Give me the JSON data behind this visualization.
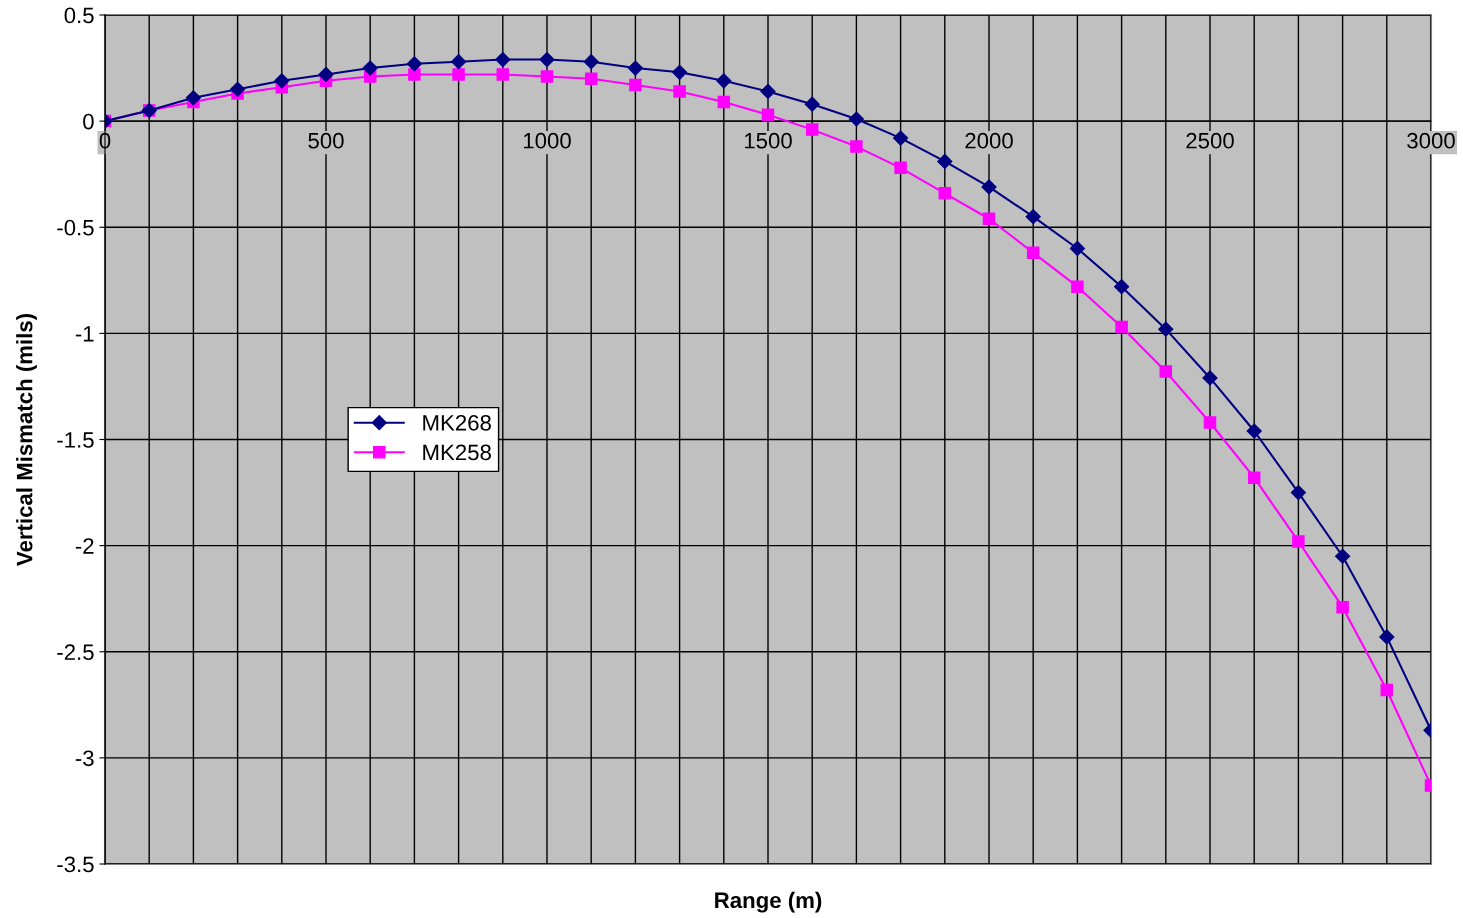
{
  "chart_data": {
    "type": "line",
    "xlabel": "Range (m)",
    "ylabel": "Vertical Mismatch (mils)",
    "x": [
      0,
      100,
      200,
      300,
      400,
      500,
      600,
      700,
      800,
      900,
      1000,
      1100,
      1200,
      1300,
      1400,
      1500,
      1600,
      1700,
      1800,
      1900,
      2000,
      2100,
      2200,
      2300,
      2400,
      2500,
      2600,
      2700,
      2800,
      2900,
      3000
    ],
    "series": [
      {
        "name": "MK268",
        "color": "#000080",
        "marker": "diamond",
        "values": [
          0,
          0.05,
          0.11,
          0.15,
          0.19,
          0.22,
          0.25,
          0.27,
          0.28,
          0.29,
          0.29,
          0.28,
          0.25,
          0.23,
          0.19,
          0.14,
          0.08,
          0.01,
          -0.08,
          -0.19,
          -0.31,
          -0.45,
          -0.6,
          -0.78,
          -0.98,
          -1.21,
          -1.46,
          -1.75,
          -2.05,
          -2.43,
          -2.87
        ]
      },
      {
        "name": "MK258",
        "color": "#ff00ff",
        "marker": "square",
        "values": [
          0,
          0.05,
          0.09,
          0.13,
          0.16,
          0.19,
          0.21,
          0.22,
          0.22,
          0.22,
          0.21,
          0.2,
          0.17,
          0.14,
          0.09,
          0.03,
          -0.04,
          -0.12,
          -0.22,
          -0.34,
          -0.46,
          -0.62,
          -0.78,
          -0.97,
          -1.18,
          -1.42,
          -1.68,
          -1.98,
          -2.29,
          -2.68,
          -3.13
        ]
      }
    ],
    "xlim": [
      0,
      3000
    ],
    "ylim": [
      -3.5,
      0.5
    ],
    "xticks": [
      0,
      {
        "value": 100,
        "label": null
      },
      {
        "value": 200,
        "label": null
      },
      {
        "value": 300,
        "label": null
      },
      {
        "value": 400,
        "label": null
      },
      500,
      {
        "value": 600,
        "label": null
      },
      {
        "value": 700,
        "label": null
      },
      {
        "value": 800,
        "label": null
      },
      {
        "value": 900,
        "label": null
      },
      1000,
      {
        "value": 1100,
        "label": null
      },
      {
        "value": 1200,
        "label": null
      },
      {
        "value": 1300,
        "label": null
      },
      {
        "value": 1400,
        "label": null
      },
      1500,
      {
        "value": 1600,
        "label": null
      },
      {
        "value": 1700,
        "label": null
      },
      {
        "value": 1800,
        "label": null
      },
      {
        "value": 1900,
        "label": null
      },
      2000,
      {
        "value": 2100,
        "label": null
      },
      {
        "value": 2200,
        "label": null
      },
      {
        "value": 2300,
        "label": null
      },
      {
        "value": 2400,
        "label": null
      },
      2500,
      {
        "value": 2600,
        "label": null
      },
      {
        "value": 2700,
        "label": null
      },
      {
        "value": 2800,
        "label": null
      },
      {
        "value": 2900,
        "label": null
      },
      3000
    ],
    "yticks": [
      -3.5,
      -3,
      -2.5,
      -2,
      -1.5,
      -1,
      -0.5,
      0,
      0.5
    ],
    "grid": true,
    "legend": "center left",
    "line_style": "solid"
  }
}
